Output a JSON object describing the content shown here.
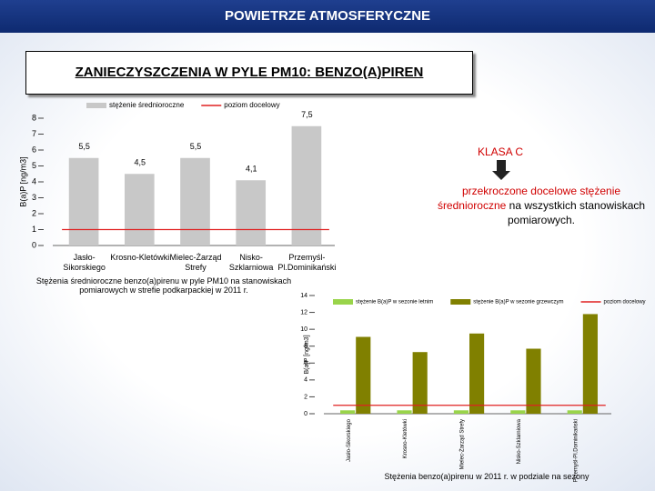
{
  "header": {
    "title": "POWIETRZE ATMOSFERYCZNE",
    "subtitle": "ZANIECZYSZCZENIA W PYLE PM10: BENZO(A)PIREN"
  },
  "note": {
    "title": "KLASA C",
    "text_red": "przekroczone docelowe stężenie średnioroczne",
    "text": "na wszystkich stanowiskach pomiarowych."
  },
  "chart_data": [
    {
      "type": "bar",
      "ylabel": "B(a)P [ng/m3]",
      "caption": "Stężenia średnioroczne benzo(a)pirenu w pyle PM10 na stanowiskach pomiarowych w strefie podkarpackiej w 2011 r.",
      "categories": [
        "Jasło-Sikorskiego",
        "Krosno-Kletówki",
        "Mielec-Żarząd Strefy",
        "Nisko-Szklarniowa",
        "Przemyśl-Pl.Dominikański"
      ],
      "series": [
        {
          "name": "stężenie średnioroczne",
          "type": "bar",
          "color": "#c8c8c8",
          "values": [
            5.5,
            4.5,
            5.5,
            4.1,
            7.5
          ],
          "value_labels": [
            "5,5",
            "4,5",
            "5,5",
            "4,1",
            "7,5"
          ]
        },
        {
          "name": "poziom docelowy",
          "type": "line",
          "color": "#e02020",
          "values": [
            1,
            1,
            1,
            1,
            1
          ]
        }
      ],
      "ylim": [
        0,
        8
      ],
      "yticks": [
        0,
        1,
        2,
        3,
        4,
        5,
        6,
        7,
        8
      ]
    },
    {
      "type": "bar",
      "ylabel": "B(a)P [ng/m3]",
      "caption": "Stężenia benzo(a)pirenu w 2011 r. w podziale na sezony",
      "categories": [
        "Jasło-Sikorskiego",
        "Krosno-Kletówki",
        "Mielec-Żarząd Strefy",
        "Nisko-Szklarniowa",
        "Przemyśl-Pl.Dominikański"
      ],
      "series": [
        {
          "name": "stężenie B(a)P w sezonie letnim",
          "type": "bar",
          "color": "#99d44a",
          "values": [
            0.4,
            0.4,
            0.4,
            0.4,
            0.4
          ]
        },
        {
          "name": "stężenie B(a)P w sezonie grzewczym",
          "type": "bar",
          "color": "#808000",
          "values": [
            9.1,
            7.3,
            9.5,
            7.7,
            11.8
          ]
        },
        {
          "name": "poziom docelowy",
          "type": "line",
          "color": "#e02020",
          "values": [
            1,
            1,
            1,
            1,
            1
          ]
        }
      ],
      "ylim": [
        0,
        14
      ],
      "yticks": [
        0,
        2,
        4,
        6,
        8,
        10,
        12,
        14
      ]
    }
  ]
}
